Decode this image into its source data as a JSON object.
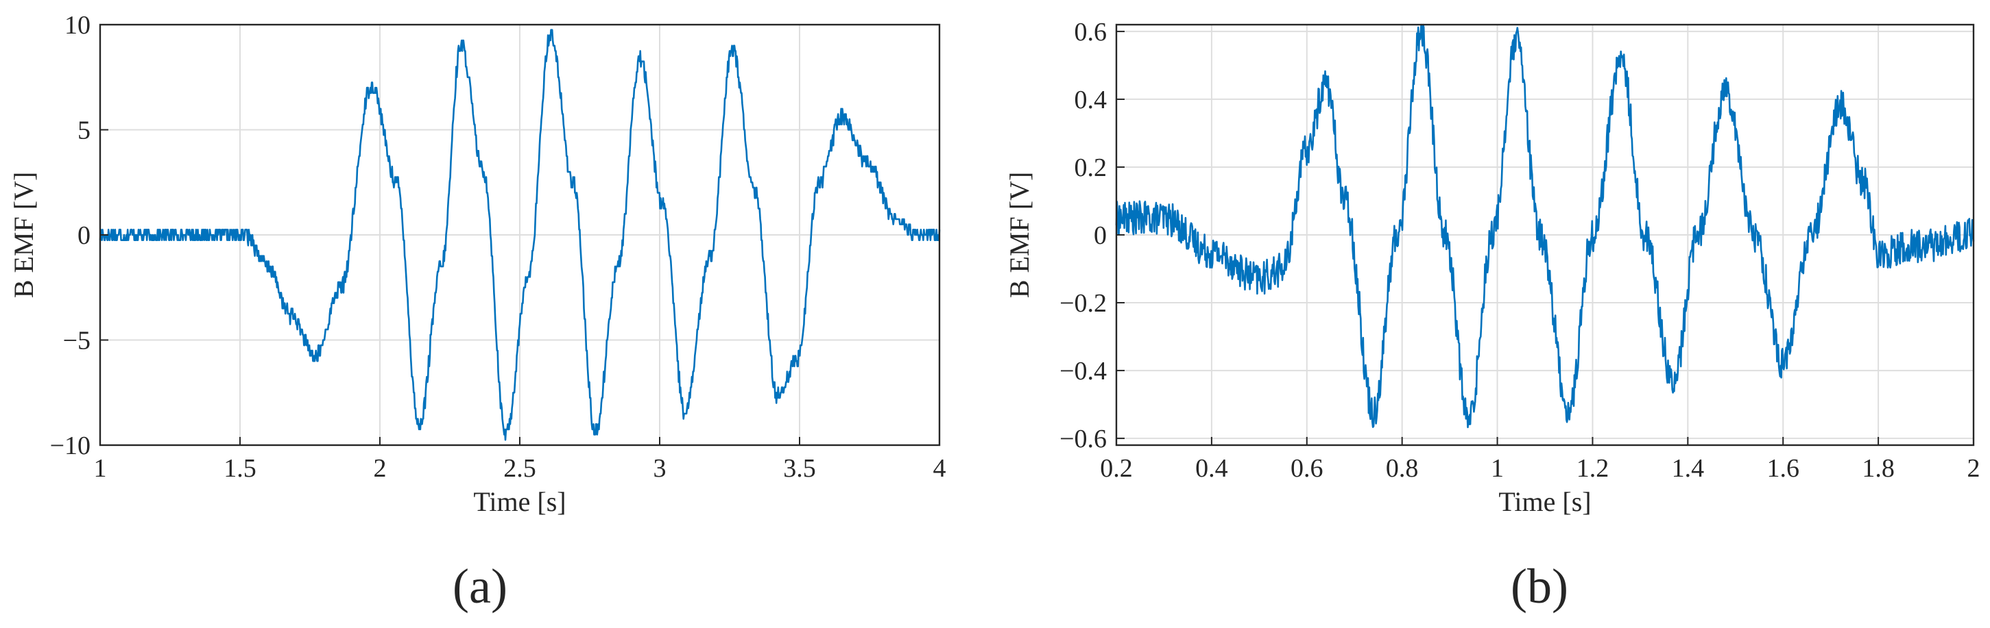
{
  "chart_data": [
    {
      "type": "line",
      "panel_label": "(a)",
      "xlabel": "Time [s]",
      "ylabel": "B EMF [V]",
      "xlim": [
        1,
        4
      ],
      "ylim": [
        -10,
        10
      ],
      "xticks": [
        1,
        1.5,
        2,
        2.5,
        3,
        3.5,
        4
      ],
      "xtick_labels": [
        "1",
        "1.5",
        "2",
        "2.5",
        "3",
        "3.5",
        "4"
      ],
      "yticks": [
        -10,
        -5,
        0,
        5,
        10
      ],
      "ytick_labels": [
        "−10",
        "−5",
        "0",
        "5",
        "10"
      ],
      "grid": true,
      "series": [
        {
          "color": "#0072bd",
          "x": [
            1.0,
            1.52,
            1.6,
            1.68,
            1.77,
            1.86,
            1.97,
            2.06,
            2.14,
            2.22,
            2.29,
            2.37,
            2.45,
            2.53,
            2.61,
            2.69,
            2.77,
            2.85,
            2.93,
            3.01,
            3.09,
            3.18,
            3.26,
            3.34,
            3.42,
            3.49,
            3.57,
            3.65,
            3.74,
            3.84,
            3.92,
            4.0
          ],
          "y": [
            0.0,
            0.0,
            -1.5,
            -3.8,
            -5.8,
            -2.5,
            7.1,
            2.5,
            -9.1,
            -1.5,
            9.1,
            3.0,
            -9.5,
            -2.0,
            9.6,
            2.5,
            -9.4,
            -1.5,
            8.4,
            1.5,
            -8.4,
            -1.0,
            8.8,
            2.0,
            -7.6,
            -6.0,
            2.5,
            5.6,
            3.5,
            0.8,
            0.0,
            0.0
          ],
          "noise": 0.35
        }
      ]
    },
    {
      "type": "line",
      "panel_label": "(b)",
      "xlabel": "Time [s]",
      "ylabel": "B EMF [V]",
      "xlim": [
        0.2,
        2
      ],
      "ylim": [
        -0.62,
        0.62
      ],
      "xticks": [
        0.2,
        0.4,
        0.6,
        0.8,
        1,
        1.2,
        1.4,
        1.6,
        1.8,
        2
      ],
      "xtick_labels": [
        "0.2",
        "0.4",
        "0.6",
        "0.8",
        "1",
        "1.2",
        "1.4",
        "1.6",
        "1.8",
        "2"
      ],
      "yticks": [
        -0.6,
        -0.4,
        -0.2,
        0,
        0.2,
        0.4,
        0.6
      ],
      "ytick_labels": [
        "−0.6",
        "−0.4",
        "−0.2",
        "0",
        "0.2",
        "0.4",
        "0.6"
      ],
      "grid": true,
      "series": [
        {
          "color": "#0072bd",
          "x": [
            0.2,
            0.3,
            0.4,
            0.5,
            0.55,
            0.6,
            0.64,
            0.68,
            0.74,
            0.79,
            0.84,
            0.89,
            0.94,
            0.99,
            1.04,
            1.09,
            1.15,
            1.2,
            1.26,
            1.31,
            1.37,
            1.42,
            1.48,
            1.54,
            1.6,
            1.66,
            1.72,
            1.77,
            1.8,
            1.9,
            2.0
          ],
          "y": [
            0.05,
            0.05,
            -0.05,
            -0.13,
            -0.1,
            0.25,
            0.45,
            0.1,
            -0.52,
            0.0,
            0.6,
            0.0,
            -0.55,
            0.0,
            0.57,
            0.0,
            -0.52,
            0.0,
            0.52,
            0.0,
            -0.44,
            0.0,
            0.43,
            0.0,
            -0.38,
            0.0,
            0.38,
            0.15,
            -0.05,
            -0.03,
            0.0
          ],
          "noise": 0.05
        }
      ]
    }
  ]
}
